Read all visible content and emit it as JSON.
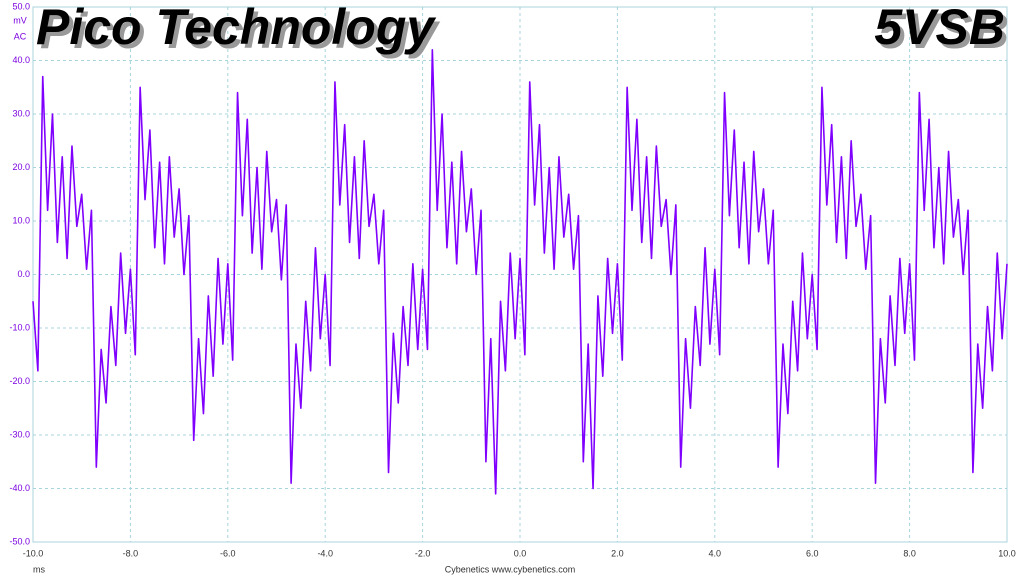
{
  "chart_data": {
    "type": "line",
    "title": "Pico Technology",
    "subtitle": "5VSB",
    "y_unit": "mV",
    "y_coupling": "AC",
    "x_unit": "ms",
    "footer": "Cybenetics  www.cybenetics.com",
    "color": "#8000ff",
    "grid": true,
    "xlim": [
      -10,
      10
    ],
    "ylim": [
      -50,
      50
    ],
    "xticks": [
      {
        "value": -10,
        "label": "-10.0"
      },
      {
        "value": -8,
        "label": "-8.0"
      },
      {
        "value": -6,
        "label": "-6.0"
      },
      {
        "value": -4,
        "label": "-4.0"
      },
      {
        "value": -2,
        "label": "-2.0"
      },
      {
        "value": 0,
        "label": "0.0"
      },
      {
        "value": 2,
        "label": "2.0"
      },
      {
        "value": 4,
        "label": "4.0"
      },
      {
        "value": 6,
        "label": "6.0"
      },
      {
        "value": 8,
        "label": "8.0"
      },
      {
        "value": 10,
        "label": "10.0"
      }
    ],
    "yticks": [
      {
        "value": 50,
        "label": "50.0"
      },
      {
        "value": 40,
        "label": "40.0"
      },
      {
        "value": 30,
        "label": "30.0"
      },
      {
        "value": 20,
        "label": "20.0"
      },
      {
        "value": 10,
        "label": "10.0"
      },
      {
        "value": 0,
        "label": "0.0"
      },
      {
        "value": -10,
        "label": "-10.0"
      },
      {
        "value": -20,
        "label": "-20.0"
      },
      {
        "value": -30,
        "label": "-30.0"
      },
      {
        "value": -40,
        "label": "-40.0"
      },
      {
        "value": -50,
        "label": "-50.0"
      }
    ],
    "x": [
      -10,
      -9.9,
      -9.8,
      -9.7,
      -9.6,
      -9.5,
      -9.4,
      -9.3,
      -9.2,
      -9.1,
      -9,
      -8.9,
      -8.8,
      -8.7,
      -8.6,
      -8.5,
      -8.4,
      -8.3,
      -8.2,
      -8.1,
      -8,
      -7.9,
      -7.8,
      -7.7,
      -7.6,
      -7.5,
      -7.4,
      -7.3,
      -7.2,
      -7.1,
      -7,
      -6.9,
      -6.8,
      -6.7,
      -6.6,
      -6.5,
      -6.4,
      -6.3,
      -6.2,
      -6.1,
      -6,
      -5.9,
      -5.8,
      -5.7,
      -5.6,
      -5.5,
      -5.4,
      -5.3,
      -5.2,
      -5.1,
      -5,
      -4.9,
      -4.8,
      -4.7,
      -4.6,
      -4.5,
      -4.4,
      -4.3,
      -4.2,
      -4.1,
      -4,
      -3.9,
      -3.8,
      -3.7,
      -3.6,
      -3.5,
      -3.4,
      -3.3,
      -3.2,
      -3.1,
      -3,
      -2.9,
      -2.8,
      -2.7,
      -2.6,
      -2.5,
      -2.4,
      -2.3,
      -2.2,
      -2.1,
      -2,
      -1.9,
      -1.8,
      -1.7,
      -1.6,
      -1.5,
      -1.4,
      -1.3,
      -1.2,
      -1.1,
      -1,
      -0.9,
      -0.8,
      -0.7,
      -0.6,
      -0.5,
      -0.4,
      -0.3,
      -0.2,
      -0.1,
      0,
      0.1,
      0.2,
      0.3,
      0.4,
      0.5,
      0.6,
      0.7,
      0.8,
      0.9,
      1,
      1.1,
      1.2,
      1.3,
      1.4,
      1.5,
      1.6,
      1.7,
      1.8,
      1.9,
      2,
      2.1,
      2.2,
      2.3,
      2.4,
      2.5,
      2.6,
      2.7,
      2.8,
      2.9,
      3,
      3.1,
      3.2,
      3.3,
      3.4,
      3.5,
      3.6,
      3.7,
      3.8,
      3.9,
      4,
      4.1,
      4.2,
      4.3,
      4.4,
      4.5,
      4.6,
      4.7,
      4.8,
      4.9,
      5,
      5.1,
      5.2,
      5.3,
      5.4,
      5.5,
      5.6,
      5.7,
      5.8,
      5.9,
      6,
      6.1,
      6.2,
      6.3,
      6.4,
      6.5,
      6.6,
      6.7,
      6.8,
      6.9,
      7,
      7.1,
      7.2,
      7.3,
      7.4,
      7.5,
      7.6,
      7.7,
      7.8,
      7.9,
      8,
      8.1,
      8.2,
      8.3,
      8.4,
      8.5,
      8.6,
      8.7,
      8.8,
      8.9,
      9,
      9.1,
      9.2,
      9.3,
      9.4,
      9.5,
      9.6,
      9.7,
      9.8,
      9.9,
      10
    ],
    "values": [
      -5,
      -18,
      37,
      12,
      30,
      6,
      22,
      3,
      24,
      9,
      15,
      1,
      12,
      -36,
      -14,
      -24,
      -6,
      -17,
      4,
      -11,
      1,
      -15,
      35,
      14,
      27,
      5,
      21,
      2,
      22,
      7,
      16,
      0,
      11,
      -31,
      -12,
      -26,
      -4,
      -19,
      3,
      -13,
      2,
      -16,
      34,
      11,
      29,
      4,
      20,
      1,
      23,
      8,
      14,
      -1,
      13,
      -39,
      -13,
      -25,
      -5,
      -18,
      5,
      -12,
      0,
      -17,
      36,
      13,
      28,
      6,
      22,
      3,
      25,
      9,
      15,
      2,
      12,
      -37,
      -11,
      -24,
      -6,
      -17,
      2,
      -14,
      1,
      -14,
      42,
      12,
      30,
      5,
      21,
      2,
      23,
      8,
      16,
      0,
      12,
      -35,
      -12,
      -41,
      -5,
      -18,
      4,
      -12,
      3,
      -15,
      36,
      13,
      28,
      4,
      20,
      1,
      22,
      7,
      15,
      1,
      11,
      -35,
      -13,
      -40,
      -4,
      -19,
      3,
      -11,
      2,
      -16,
      35,
      12,
      29,
      6,
      22,
      3,
      24,
      9,
      14,
      0,
      13,
      -36,
      -12,
      -25,
      -6,
      -17,
      5,
      -13,
      1,
      -15,
      34,
      11,
      27,
      5,
      21,
      2,
      23,
      8,
      16,
      2,
      12,
      -36,
      -13,
      -26,
      -5,
      -18,
      4,
      -12,
      0,
      -14,
      35,
      13,
      28,
      6,
      22,
      3,
      25,
      9,
      15,
      1,
      11,
      -39,
      -12,
      -24,
      -4,
      -17,
      3,
      -11,
      2,
      -16,
      34,
      12,
      29,
      5,
      20,
      2,
      23,
      7,
      14,
      0,
      12,
      -37,
      -13,
      -25,
      -6,
      -18,
      4,
      -12,
      2
    ]
  }
}
